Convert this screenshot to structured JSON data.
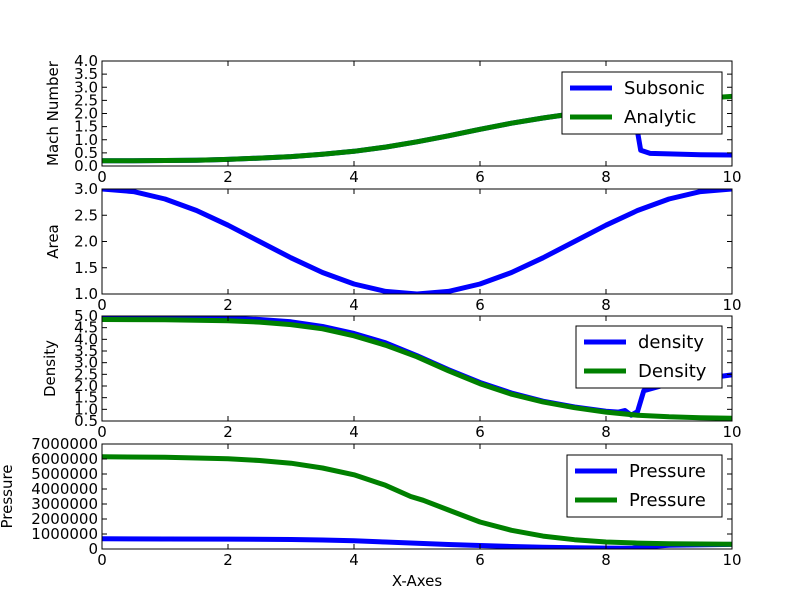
{
  "figure": {
    "xlabel": "X-Axes"
  },
  "chart_data": [
    {
      "type": "line",
      "ylabel": "Mach Number",
      "xlim": [
        0,
        10
      ],
      "ylim": [
        0,
        4
      ],
      "xticks": [
        "0",
        "2",
        "4",
        "6",
        "8",
        "10"
      ],
      "yticks": [
        "0.0",
        "0.5",
        "1.0",
        "1.5",
        "2.0",
        "2.5",
        "3.0",
        "3.5",
        "4.0"
      ],
      "legend_position": "top-right",
      "series": [
        {
          "name": "Subsonic",
          "color": "#0000ff",
          "points": [
            [
              0,
              0.2
            ],
            [
              0.5,
              0.2
            ],
            [
              1,
              0.21
            ],
            [
              1.5,
              0.22
            ],
            [
              2,
              0.25
            ],
            [
              2.5,
              0.3
            ],
            [
              3,
              0.36
            ],
            [
              3.5,
              0.45
            ],
            [
              4,
              0.56
            ],
            [
              4.5,
              0.72
            ],
            [
              5,
              0.92
            ],
            [
              5.5,
              1.15
            ],
            [
              6,
              1.4
            ],
            [
              6.5,
              1.63
            ],
            [
              7,
              1.83
            ],
            [
              7.5,
              2.0
            ],
            [
              8,
              2.15
            ],
            [
              8.3,
              2.2
            ],
            [
              8.45,
              2.0
            ],
            [
              8.55,
              0.6
            ],
            [
              8.7,
              0.48
            ],
            [
              9,
              0.46
            ],
            [
              9.5,
              0.43
            ],
            [
              10,
              0.42
            ]
          ]
        },
        {
          "name": "Analytic",
          "color": "#008000",
          "points": [
            [
              0,
              0.2
            ],
            [
              0.5,
              0.2
            ],
            [
              1,
              0.21
            ],
            [
              1.5,
              0.22
            ],
            [
              2,
              0.25
            ],
            [
              2.5,
              0.3
            ],
            [
              3,
              0.36
            ],
            [
              3.5,
              0.45
            ],
            [
              4,
              0.56
            ],
            [
              4.5,
              0.72
            ],
            [
              5,
              0.92
            ],
            [
              5.5,
              1.15
            ],
            [
              6,
              1.4
            ],
            [
              6.5,
              1.63
            ],
            [
              7,
              1.83
            ],
            [
              7.5,
              2.0
            ],
            [
              8,
              2.15
            ],
            [
              8.5,
              2.3
            ],
            [
              9,
              2.45
            ],
            [
              9.5,
              2.57
            ],
            [
              10,
              2.65
            ]
          ]
        }
      ]
    },
    {
      "type": "line",
      "ylabel": "Area",
      "xlim": [
        0,
        10
      ],
      "ylim": [
        1,
        3
      ],
      "xticks": [
        "0",
        "2",
        "4",
        "6",
        "8",
        "10"
      ],
      "yticks": [
        "1.0",
        "1.5",
        "2.0",
        "2.5",
        "3.0"
      ],
      "series": [
        {
          "name": "",
          "color": "#0000ff",
          "points": [
            [
              0,
              3.0
            ],
            [
              0.5,
              2.95
            ],
            [
              1,
              2.81
            ],
            [
              1.5,
              2.59
            ],
            [
              2,
              2.31
            ],
            [
              2.5,
              2.0
            ],
            [
              3,
              1.69
            ],
            [
              3.5,
              1.41
            ],
            [
              4,
              1.19
            ],
            [
              4.5,
              1.05
            ],
            [
              5,
              1.0
            ],
            [
              5.5,
              1.05
            ],
            [
              6,
              1.19
            ],
            [
              6.5,
              1.41
            ],
            [
              7,
              1.69
            ],
            [
              7.5,
              2.0
            ],
            [
              8,
              2.31
            ],
            [
              8.5,
              2.59
            ],
            [
              9,
              2.81
            ],
            [
              9.5,
              2.95
            ],
            [
              10,
              3.0
            ]
          ]
        }
      ]
    },
    {
      "type": "line",
      "ylabel": "Density",
      "xlim": [
        0,
        10
      ],
      "ylim": [
        0.5,
        5
      ],
      "xticks": [
        "0",
        "2",
        "4",
        "6",
        "8",
        "10"
      ],
      "yticks": [
        "0.5",
        "1.0",
        "1.5",
        "2.0",
        "2.5",
        "3.0",
        "3.5",
        "4.0",
        "4.5",
        "5.0"
      ],
      "legend_position": "top-right",
      "series": [
        {
          "name": "density",
          "color": "#0000ff",
          "points": [
            [
              0,
              4.95
            ],
            [
              1,
              4.94
            ],
            [
              2,
              4.9
            ],
            [
              2.5,
              4.85
            ],
            [
              3,
              4.75
            ],
            [
              3.5,
              4.55
            ],
            [
              4,
              4.25
            ],
            [
              4.5,
              3.85
            ],
            [
              5,
              3.3
            ],
            [
              5.5,
              2.7
            ],
            [
              6,
              2.15
            ],
            [
              6.5,
              1.7
            ],
            [
              7,
              1.35
            ],
            [
              7.5,
              1.1
            ],
            [
              8,
              0.92
            ],
            [
              8.2,
              0.88
            ],
            [
              8.3,
              0.95
            ],
            [
              8.4,
              0.75
            ],
            [
              8.5,
              0.9
            ],
            [
              8.6,
              1.8
            ],
            [
              9,
              2.1
            ],
            [
              9.5,
              2.3
            ],
            [
              10,
              2.48
            ]
          ]
        },
        {
          "name": "Density",
          "color": "#008000",
          "points": [
            [
              0,
              4.85
            ],
            [
              1,
              4.84
            ],
            [
              2,
              4.8
            ],
            [
              2.5,
              4.74
            ],
            [
              3,
              4.63
            ],
            [
              3.5,
              4.45
            ],
            [
              4,
              4.15
            ],
            [
              4.5,
              3.75
            ],
            [
              5,
              3.25
            ],
            [
              5.5,
              2.65
            ],
            [
              6,
              2.1
            ],
            [
              6.5,
              1.65
            ],
            [
              7,
              1.32
            ],
            [
              7.5,
              1.07
            ],
            [
              8,
              0.88
            ],
            [
              8.5,
              0.75
            ],
            [
              9,
              0.68
            ],
            [
              9.5,
              0.64
            ],
            [
              10,
              0.62
            ]
          ]
        }
      ]
    },
    {
      "type": "line",
      "ylabel": "Pressure",
      "xlim": [
        0,
        10
      ],
      "ylim": [
        0,
        7000000
      ],
      "xticks": [
        "0",
        "2",
        "4",
        "6",
        "8",
        "10"
      ],
      "yticks": [
        "0",
        "1000000",
        "2000000",
        "3000000",
        "4000000",
        "5000000",
        "6000000",
        "7000000"
      ],
      "legend_position": "top-right",
      "series": [
        {
          "name": "Pressure",
          "color": "#0000ff",
          "points": [
            [
              0,
              680000
            ],
            [
              1,
              670000
            ],
            [
              2,
              660000
            ],
            [
              3,
              630000
            ],
            [
              3.5,
              600000
            ],
            [
              4,
              550000
            ],
            [
              4.5,
              470000
            ],
            [
              5,
              380000
            ],
            [
              5.5,
              300000
            ],
            [
              6,
              230000
            ],
            [
              6.5,
              170000
            ],
            [
              7,
              120000
            ],
            [
              7.5,
              80000
            ],
            [
              8,
              60000
            ],
            [
              8.4,
              50000
            ],
            [
              8.6,
              150000
            ],
            [
              9,
              250000
            ],
            [
              10,
              310000
            ]
          ]
        },
        {
          "name": "Pressure",
          "color": "#008000",
          "points": [
            [
              0,
              6150000
            ],
            [
              1,
              6120000
            ],
            [
              2,
              6020000
            ],
            [
              2.5,
              5900000
            ],
            [
              3,
              5720000
            ],
            [
              3.5,
              5400000
            ],
            [
              4,
              4950000
            ],
            [
              4.5,
              4250000
            ],
            [
              4.9,
              3500000
            ],
            [
              5.1,
              3250000
            ],
            [
              5.5,
              2600000
            ],
            [
              6,
              1800000
            ],
            [
              6.5,
              1250000
            ],
            [
              7,
              860000
            ],
            [
              7.5,
              620000
            ],
            [
              8,
              470000
            ],
            [
              8.5,
              390000
            ],
            [
              9,
              350000
            ],
            [
              9.5,
              330000
            ],
            [
              10,
              320000
            ]
          ]
        }
      ]
    }
  ]
}
